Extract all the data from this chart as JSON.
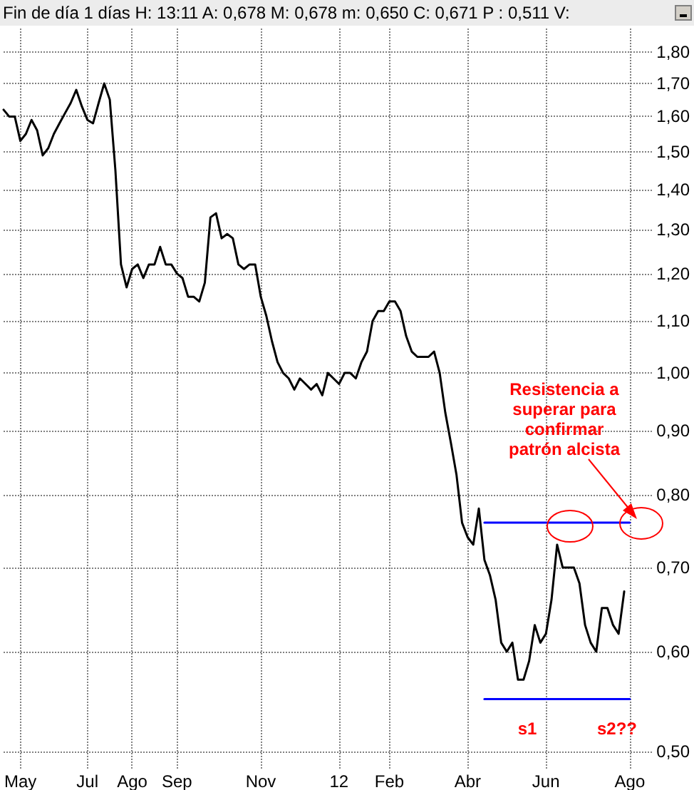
{
  "chart_data": {
    "type": "line",
    "title": "Fin de día 1 días H: 13:11 A: 0,678 M: 0,678 m: 0,650 C: 0,671 P : 0,511 V:",
    "categories": [
      null,
      null,
      null,
      "May",
      null,
      null,
      null,
      null,
      null,
      null,
      null,
      null,
      null,
      null,
      null,
      "Jul",
      null,
      null,
      null,
      null,
      null,
      null,
      null,
      "Ago",
      null,
      null,
      null,
      null,
      null,
      null,
      null,
      "Sep",
      null,
      null,
      null,
      null,
      null,
      null,
      null,
      null,
      null,
      null,
      null,
      null,
      null,
      null,
      "Nov",
      null,
      null,
      null,
      null,
      null,
      null,
      null,
      null,
      null,
      null,
      null,
      null,
      null,
      "12",
      null,
      null,
      null,
      null,
      null,
      null,
      null,
      null,
      "Feb",
      null,
      null,
      null,
      null,
      null,
      null,
      null,
      null,
      null,
      null,
      null,
      null,
      null,
      "Abr",
      null,
      null,
      null,
      null,
      null,
      null,
      null,
      null,
      null,
      null,
      null,
      null,
      null,
      "Jun",
      null,
      null,
      null,
      null,
      null,
      null,
      null,
      null,
      null,
      null,
      null,
      null,
      null,
      null,
      "Ago",
      null,
      null,
      null,
      null
    ],
    "series": [
      {
        "color": "#000000",
        "values": [
          1.62,
          1.6,
          1.6,
          1.53,
          1.55,
          1.59,
          1.56,
          1.49,
          1.51,
          1.55,
          1.58,
          1.61,
          1.64,
          1.68,
          1.63,
          1.59,
          1.58,
          1.64,
          1.7,
          1.65,
          1.45,
          1.22,
          1.17,
          1.21,
          1.22,
          1.19,
          1.22,
          1.22,
          1.26,
          1.22,
          1.22,
          1.2,
          1.19,
          1.15,
          1.15,
          1.14,
          1.18,
          1.33,
          1.34,
          1.28,
          1.29,
          1.28,
          1.22,
          1.21,
          1.22,
          1.22,
          1.15,
          1.11,
          1.06,
          1.02,
          1.0,
          0.99,
          0.97,
          0.99,
          0.98,
          0.97,
          0.98,
          0.96,
          1.0,
          0.99,
          0.98,
          1.0,
          1.0,
          0.99,
          1.02,
          1.04,
          1.1,
          1.12,
          1.12,
          1.14,
          1.14,
          1.12,
          1.07,
          1.04,
          1.03,
          1.03,
          1.03,
          1.04,
          1.0,
          0.93,
          0.88,
          0.83,
          0.76,
          0.74,
          0.73,
          0.78,
          0.71,
          0.69,
          0.66,
          0.61,
          0.6,
          0.61,
          0.57,
          0.57,
          0.59,
          0.63,
          0.61,
          0.62,
          0.66,
          0.73,
          0.7,
          0.7,
          0.7,
          0.68,
          0.63,
          0.61,
          0.6,
          0.65,
          0.65,
          0.63,
          0.62,
          0.67,
          null,
          null,
          null,
          null,
          null
        ]
      },
      {
        "color": "#0000ff",
        "values": [
          null,
          null,
          null,
          null,
          null,
          null,
          null,
          null,
          null,
          null,
          null,
          null,
          null,
          null,
          null,
          null,
          null,
          null,
          null,
          null,
          null,
          null,
          null,
          null,
          null,
          null,
          null,
          null,
          null,
          null,
          null,
          null,
          null,
          null,
          null,
          null,
          null,
          null,
          null,
          null,
          null,
          null,
          null,
          null,
          null,
          null,
          null,
          null,
          null,
          null,
          null,
          null,
          null,
          null,
          null,
          null,
          null,
          null,
          null,
          null,
          null,
          null,
          null,
          null,
          null,
          null,
          null,
          null,
          null,
          null,
          null,
          null,
          null,
          null,
          null,
          null,
          null,
          null,
          null,
          null,
          null,
          null,
          null,
          null,
          null,
          null,
          0.76,
          0.76,
          0.76,
          0.76,
          0.76,
          0.76,
          0.76,
          0.76,
          0.76,
          0.76,
          0.76,
          0.76,
          0.76,
          0.76,
          0.76,
          0.76,
          0.76,
          0.76,
          0.76,
          0.76,
          0.76,
          0.76,
          0.76,
          0.76,
          0.76,
          0.76,
          0.76,
          null,
          null,
          null,
          null
        ]
      },
      {
        "color": "#0000ff",
        "values": [
          null,
          null,
          null,
          null,
          null,
          null,
          null,
          null,
          null,
          null,
          null,
          null,
          null,
          null,
          null,
          null,
          null,
          null,
          null,
          null,
          null,
          null,
          null,
          null,
          null,
          null,
          null,
          null,
          null,
          null,
          null,
          null,
          null,
          null,
          null,
          null,
          null,
          null,
          null,
          null,
          null,
          null,
          null,
          null,
          null,
          null,
          null,
          null,
          null,
          null,
          null,
          null,
          null,
          null,
          null,
          null,
          null,
          null,
          null,
          null,
          null,
          null,
          null,
          null,
          null,
          null,
          null,
          null,
          null,
          null,
          null,
          null,
          null,
          null,
          null,
          null,
          null,
          null,
          null,
          null,
          null,
          null,
          null,
          null,
          null,
          null,
          0.55,
          0.55,
          0.55,
          0.55,
          0.55,
          0.55,
          0.55,
          0.55,
          0.55,
          0.55,
          0.55,
          0.55,
          0.55,
          0.55,
          0.55,
          0.55,
          0.55,
          0.55,
          0.55,
          0.55,
          0.55,
          0.55,
          0.55,
          0.55,
          0.55,
          0.55,
          0.55,
          null,
          null,
          null,
          null
        ]
      }
    ],
    "ylim": [
      0.483,
      1.88
    ],
    "yticks": [
      {
        "value": 0.5,
        "label": "0,50"
      },
      {
        "value": 0.6,
        "label": "0,60"
      },
      {
        "value": 0.7,
        "label": "0,70"
      },
      {
        "value": 0.8,
        "label": "0,80"
      },
      {
        "value": 0.9,
        "label": "0,90"
      },
      {
        "value": 1.0,
        "label": "1,00"
      },
      {
        "value": 1.1,
        "label": "1,10"
      },
      {
        "value": 1.2,
        "label": "1,20"
      },
      {
        "value": 1.3,
        "label": "1,30"
      },
      {
        "value": 1.4,
        "label": "1,40"
      },
      {
        "value": 1.5,
        "label": "1,50"
      },
      {
        "value": 1.6,
        "label": "1,60"
      },
      {
        "value": 1.7,
        "label": "1,70"
      },
      {
        "value": 1.8,
        "label": "1,80"
      }
    ],
    "log": true,
    "grid": true,
    "marker": "none",
    "annotations": [
      "Resistencia a superar para confirmar patrón alcista",
      "s1",
      "s2??"
    ]
  }
}
